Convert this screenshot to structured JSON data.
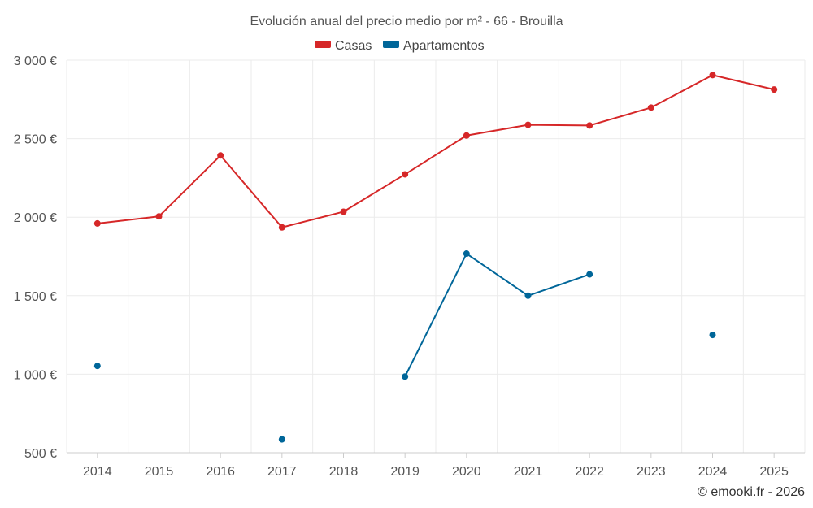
{
  "chart_data": {
    "type": "line",
    "title": "Evolución anual del precio medio por m² - 66 - Brouilla",
    "categories": [
      "2014",
      "2015",
      "2016",
      "2017",
      "2018",
      "2019",
      "2020",
      "2021",
      "2022",
      "2023",
      "2024",
      "2025"
    ],
    "ylim": [
      500,
      3000
    ],
    "yticks": [
      500,
      1000,
      1500,
      2000,
      2500,
      3000
    ],
    "ytick_labels": [
      "500 €",
      "1 000 €",
      "1 500 €",
      "2 000 €",
      "2 500 €",
      "3 000 €"
    ],
    "grid": true,
    "legend_position": "top-center",
    "series": [
      {
        "name": "Casas",
        "color": "#d62728",
        "values": [
          1960,
          2005,
          2393,
          1935,
          2035,
          2273,
          2520,
          2588,
          2584,
          2698,
          2905,
          2813
        ]
      },
      {
        "name": "Apartamentos",
        "color": "#006699",
        "values": [
          1053,
          null,
          null,
          585,
          null,
          985,
          1768,
          1500,
          1636,
          null,
          1250,
          null
        ]
      }
    ]
  },
  "footer": {
    "credit": "© emooki.fr - 2026"
  }
}
